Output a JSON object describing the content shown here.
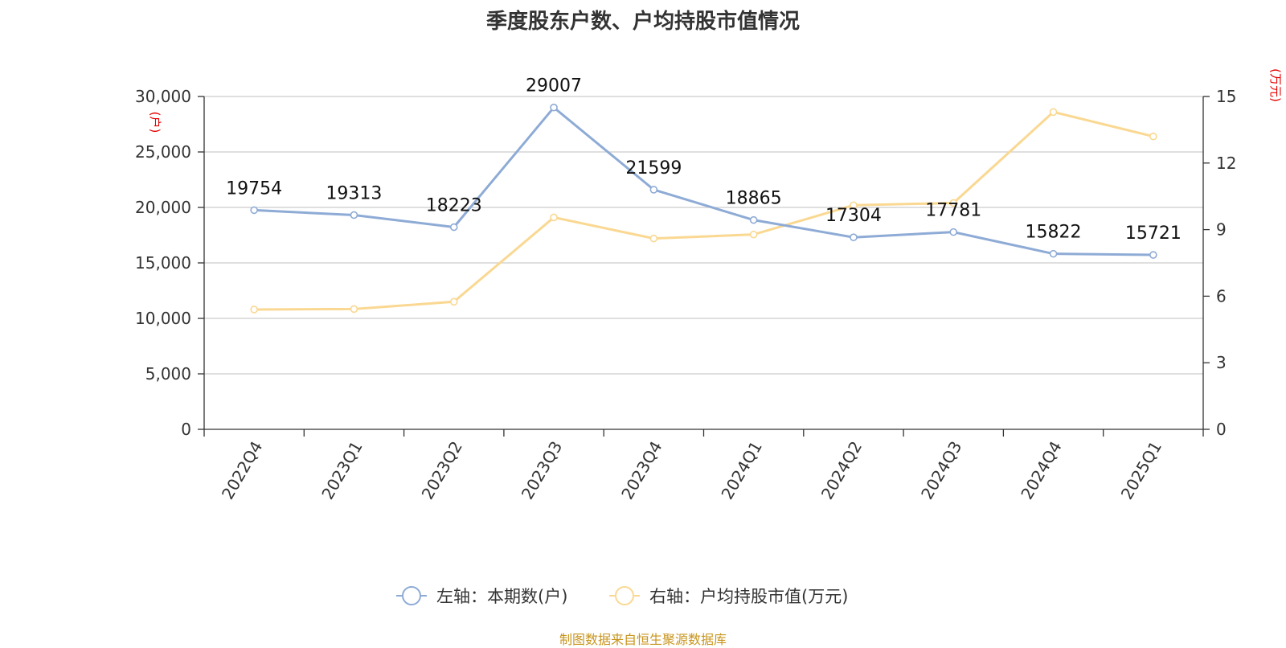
{
  "source_note": "制图数据来自恒生聚源数据库",
  "chart_data": {
    "type": "line",
    "title": "季度股东户数、户均持股市值情况",
    "categories": [
      "2022Q4",
      "2023Q1",
      "2023Q2",
      "2023Q3",
      "2023Q4",
      "2024Q1",
      "2024Q2",
      "2024Q3",
      "2024Q4",
      "2025Q1"
    ],
    "left_axis": {
      "unit": "(户)",
      "min": 0,
      "max": 30000,
      "ticks": [
        "0",
        "5,000",
        "10,000",
        "15,000",
        "20,000",
        "25,000",
        "30,000"
      ]
    },
    "right_axis": {
      "unit": "(万元)",
      "min": 0,
      "max": 15,
      "ticks": [
        "0",
        "3",
        "6",
        "9",
        "12",
        "15"
      ]
    },
    "grid": true,
    "legend_position": "bottom-center",
    "series": [
      {
        "name": "左轴：本期数(户)",
        "axis": "left",
        "color": "#8eabd6",
        "values": [
          19754,
          19313,
          18223,
          29007,
          21599,
          18865,
          17304,
          17781,
          15822,
          15721
        ],
        "labels": [
          "19754",
          "19313",
          "18223",
          "29007",
          "21599",
          "18865",
          "17304",
          "17781",
          "15822",
          "15721"
        ]
      },
      {
        "name": "右轴：户均持股市值(万元)",
        "axis": "right",
        "color": "#fad892",
        "values": [
          5.4,
          5.42,
          5.75,
          9.55,
          8.6,
          8.78,
          10.1,
          10.2,
          14.3,
          13.2
        ]
      }
    ]
  }
}
